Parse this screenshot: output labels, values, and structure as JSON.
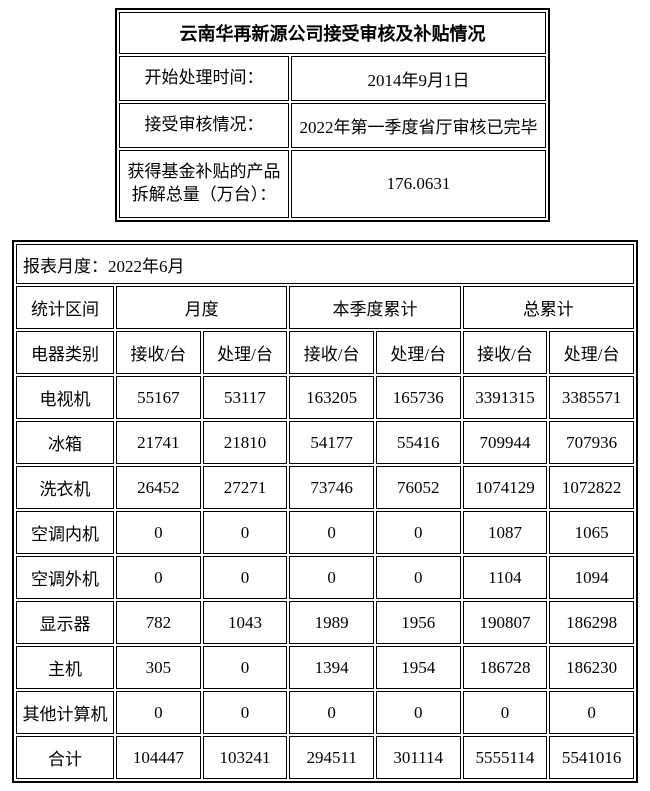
{
  "summary_table": {
    "title": "云南华再新源公司接受审核及补贴情况",
    "rows": [
      {
        "label": "开始处理时间：",
        "value": "2014年9月1日"
      },
      {
        "label": "接受审核情况：",
        "value": "2022年第一季度省厅审核已完毕"
      },
      {
        "label": "获得基金补贴的产品拆解总量（万台）：",
        "value": "176.0631"
      }
    ]
  },
  "report_table": {
    "period": "报表月度：2022年6月",
    "stat_interval_header": "统计区间",
    "group_headers": [
      "月度",
      "本季度累计",
      "总累计"
    ],
    "category_header": "电器类别",
    "sub_headers": [
      "接收/台",
      "处理/台",
      "接收/台",
      "处理/台",
      "接收/台",
      "处理/台"
    ],
    "rows": [
      {
        "category": "电视机",
        "values": [
          "55167",
          "53117",
          "163205",
          "165736",
          "3391315",
          "3385571"
        ]
      },
      {
        "category": "冰箱",
        "values": [
          "21741",
          "21810",
          "54177",
          "55416",
          "709944",
          "707936"
        ]
      },
      {
        "category": "洗衣机",
        "values": [
          "26452",
          "27271",
          "73746",
          "76052",
          "1074129",
          "1072822"
        ]
      },
      {
        "category": "空调内机",
        "values": [
          "0",
          "0",
          "0",
          "0",
          "1087",
          "1065"
        ]
      },
      {
        "category": "空调外机",
        "values": [
          "0",
          "0",
          "0",
          "0",
          "1104",
          "1094"
        ]
      },
      {
        "category": "显示器",
        "values": [
          "782",
          "1043",
          "1989",
          "1956",
          "190807",
          "186298"
        ]
      },
      {
        "category": "主机",
        "values": [
          "305",
          "0",
          "1394",
          "1954",
          "186728",
          "186230"
        ]
      },
      {
        "category": "其他计算机",
        "values": [
          "0",
          "0",
          "0",
          "0",
          "0",
          "0"
        ]
      },
      {
        "category": "合计",
        "values": [
          "104447",
          "103241",
          "294511",
          "301114",
          "5555114",
          "5541016"
        ]
      }
    ]
  }
}
